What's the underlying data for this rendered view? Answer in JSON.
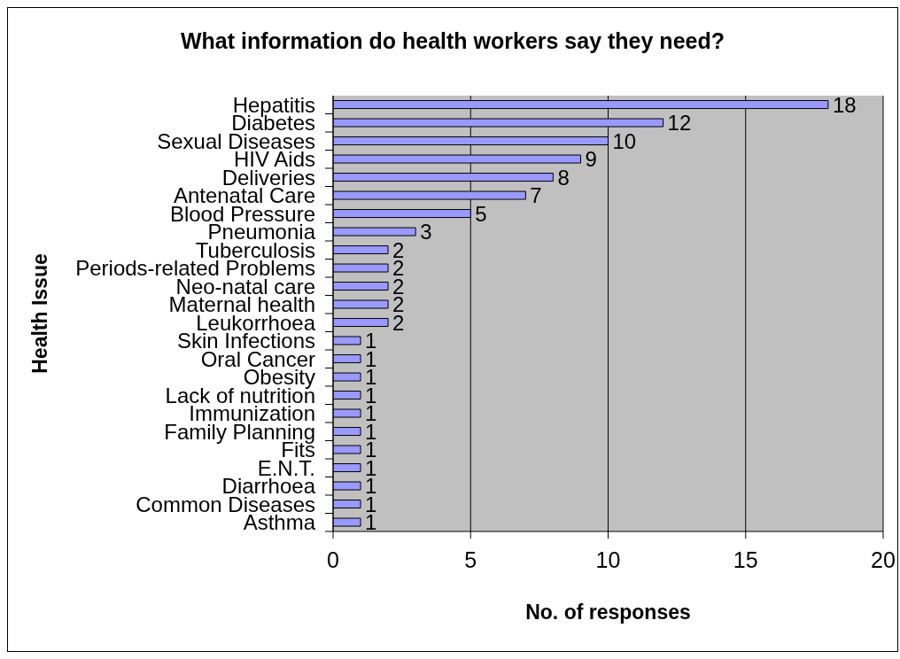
{
  "chart_data": {
    "type": "bar",
    "orientation": "horizontal",
    "title": "What information do health workers say they need?",
    "xlabel": "No. of responses",
    "ylabel": "Health Issue",
    "categories": [
      "Hepatitis",
      "Diabetes",
      "Sexual Diseases",
      "HIV Aids",
      "Deliveries",
      "Antenatal Care",
      "Blood Pressure",
      "Pneumonia",
      "Tuberculosis",
      "Periods-related Problems",
      "Neo-natal care",
      "Maternal health",
      "Leukorrhoea",
      "Skin Infections",
      "Oral Cancer",
      "Obesity",
      "Lack of nutrition",
      "Immunization",
      "Family Planning",
      "Fits",
      "E.N.T.",
      "Diarrhoea",
      "Common Diseases",
      "Asthma"
    ],
    "values": [
      18,
      12,
      10,
      9,
      8,
      7,
      5,
      3,
      2,
      2,
      2,
      2,
      2,
      1,
      1,
      1,
      1,
      1,
      1,
      1,
      1,
      1,
      1,
      1
    ],
    "color": "#9999ff",
    "xlim": [
      0,
      20
    ],
    "xticks": [
      0,
      5,
      10,
      15,
      20
    ],
    "grid": "x",
    "data_labels": true
  }
}
